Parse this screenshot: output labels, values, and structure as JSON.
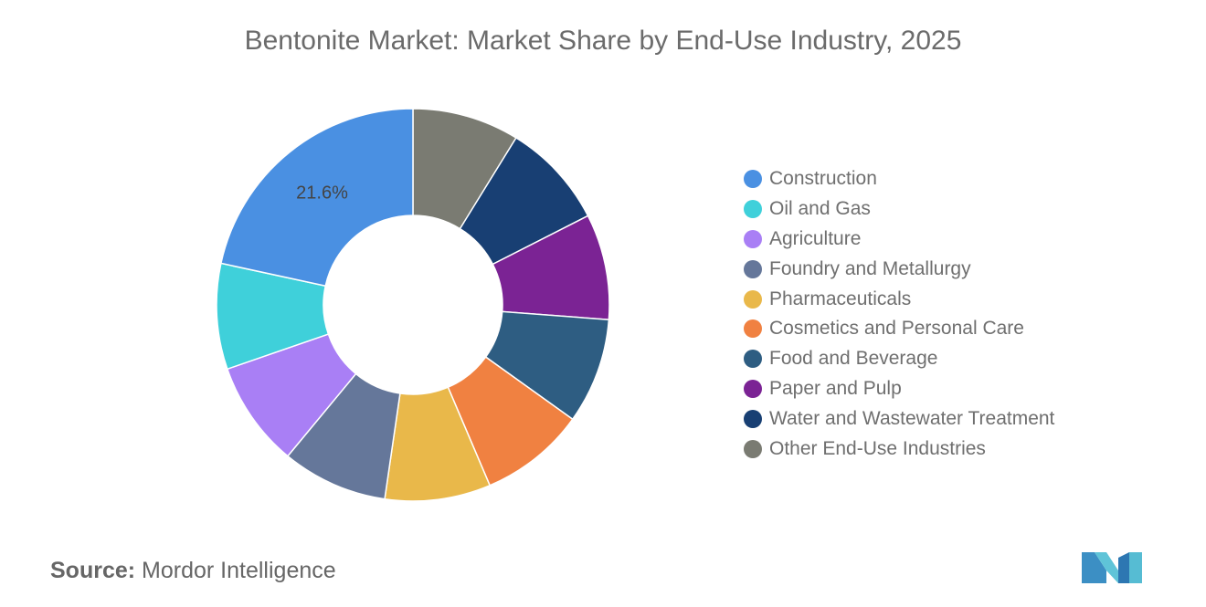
{
  "chart_data": {
    "type": "pie",
    "donut": true,
    "title": "Bentonite Market: Market Share by End-Use Industry, 2025",
    "legend_position": "right",
    "categories": [
      "Construction",
      "Oil and Gas",
      "Agriculture",
      "Foundry and Metallurgy",
      "Pharmaceuticals",
      "Cosmetics and Personal Care",
      "Food and Beverage",
      "Paper and Pulp",
      "Water and Wastewater Treatment",
      "Other End-Use Industries"
    ],
    "values": [
      21.6,
      8.7,
      8.7,
      8.7,
      8.7,
      8.7,
      8.7,
      8.7,
      8.7,
      8.8
    ],
    "colors": [
      "#4a90e2",
      "#3fd0da",
      "#a97ff5",
      "#65779a",
      "#e9b84a",
      "#f08141",
      "#2e5d82",
      "#7b2394",
      "#183f73",
      "#7a7b72"
    ],
    "data_labels": [
      "21.6%",
      "",
      "",
      "",
      "",
      "",
      "",
      "",
      "",
      ""
    ]
  },
  "source": {
    "label": "Source:",
    "value": "Mordor Intelligence"
  },
  "logo_icon": "mordor-intelligence-logo-icon"
}
